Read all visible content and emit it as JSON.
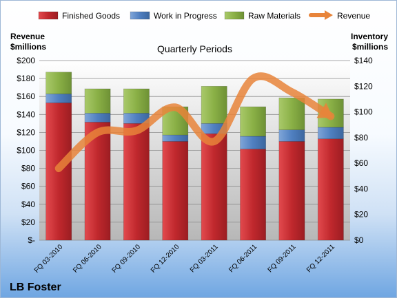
{
  "chart_data": {
    "type": "bar",
    "subtype": "stacked-bar-with-line",
    "title": "Quarterly Periods",
    "company": "LB Foster",
    "left_axis_title": "Revenue\n$millions",
    "right_axis_title": "Inventory\n$millions",
    "categories": [
      "FQ 03-2010",
      "FQ 06-2010",
      "FQ 09-2010",
      "FQ 12-2010",
      "FQ 03-2011",
      "FQ 06-2011",
      "FQ 09-2011",
      "FQ 12-2011"
    ],
    "series": [
      {
        "name": "Finished Goods",
        "axis": "right",
        "kind": "bar",
        "color": "#c0282d",
        "values": [
          107,
          92,
          91,
          77,
          83,
          71,
          77,
          79
        ]
      },
      {
        "name": "Work in Progress",
        "axis": "right",
        "kind": "bar",
        "color": "#4f7fc0",
        "values": [
          7,
          7,
          8,
          5,
          8,
          10,
          9,
          9
        ]
      },
      {
        "name": "Raw Materials",
        "axis": "right",
        "kind": "bar",
        "color": "#8ab046",
        "values": [
          17,
          19,
          19,
          22,
          29,
          23,
          25,
          22
        ]
      },
      {
        "name": "Revenue",
        "axis": "left",
        "kind": "line",
        "color": "#e8843a",
        "values": [
          80,
          120,
          122,
          148,
          110,
          180,
          165,
          138
        ]
      }
    ],
    "left_ylim": [
      0,
      200
    ],
    "left_ticks": [
      "$-",
      "$20",
      "$40",
      "$60",
      "$80",
      "$100",
      "$120",
      "$140",
      "$160",
      "$180",
      "$200"
    ],
    "right_ylim": [
      0,
      140
    ],
    "right_ticks": [
      "$0",
      "$20",
      "$40",
      "$60",
      "$80",
      "$100",
      "$120",
      "$140"
    ],
    "legend_position": "top",
    "grid": true
  }
}
